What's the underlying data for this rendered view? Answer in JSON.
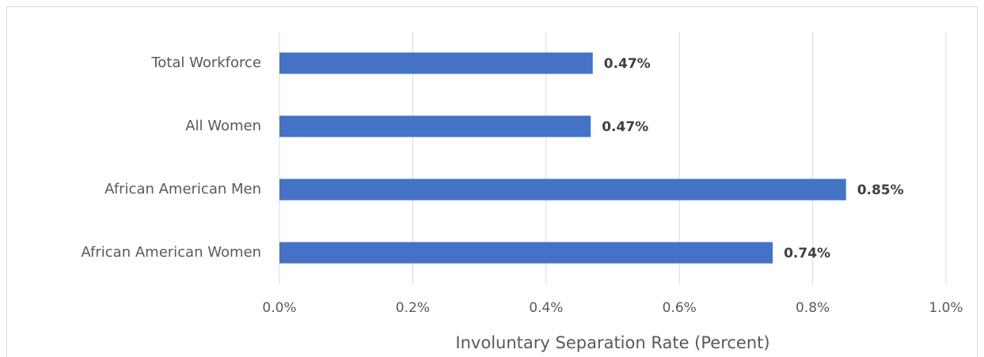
{
  "chart_data": {
    "type": "bar",
    "orientation": "horizontal",
    "categories": [
      "Total Workforce",
      "All Women",
      "African American Men",
      "African American Women"
    ],
    "values": [
      0.47,
      0.467,
      0.85,
      0.74
    ],
    "value_labels": [
      "0.47%",
      "0.47%",
      "0.85%",
      "0.74%"
    ],
    "color": "#4472c4",
    "xlabel": "Involuntary Separation Rate (Percent)",
    "xlim": [
      0,
      1.0
    ],
    "xticks": [
      {
        "value": 0,
        "label": "0.0%"
      },
      {
        "value": 0.2,
        "label": "0.2%"
      },
      {
        "value": 0.4,
        "label": "0.4%"
      },
      {
        "value": 0.6,
        "label": "0.6%"
      },
      {
        "value": 0.8,
        "label": "0.8%"
      },
      {
        "value": 1.0,
        "label": "1.0%"
      }
    ],
    "grid": true
  }
}
